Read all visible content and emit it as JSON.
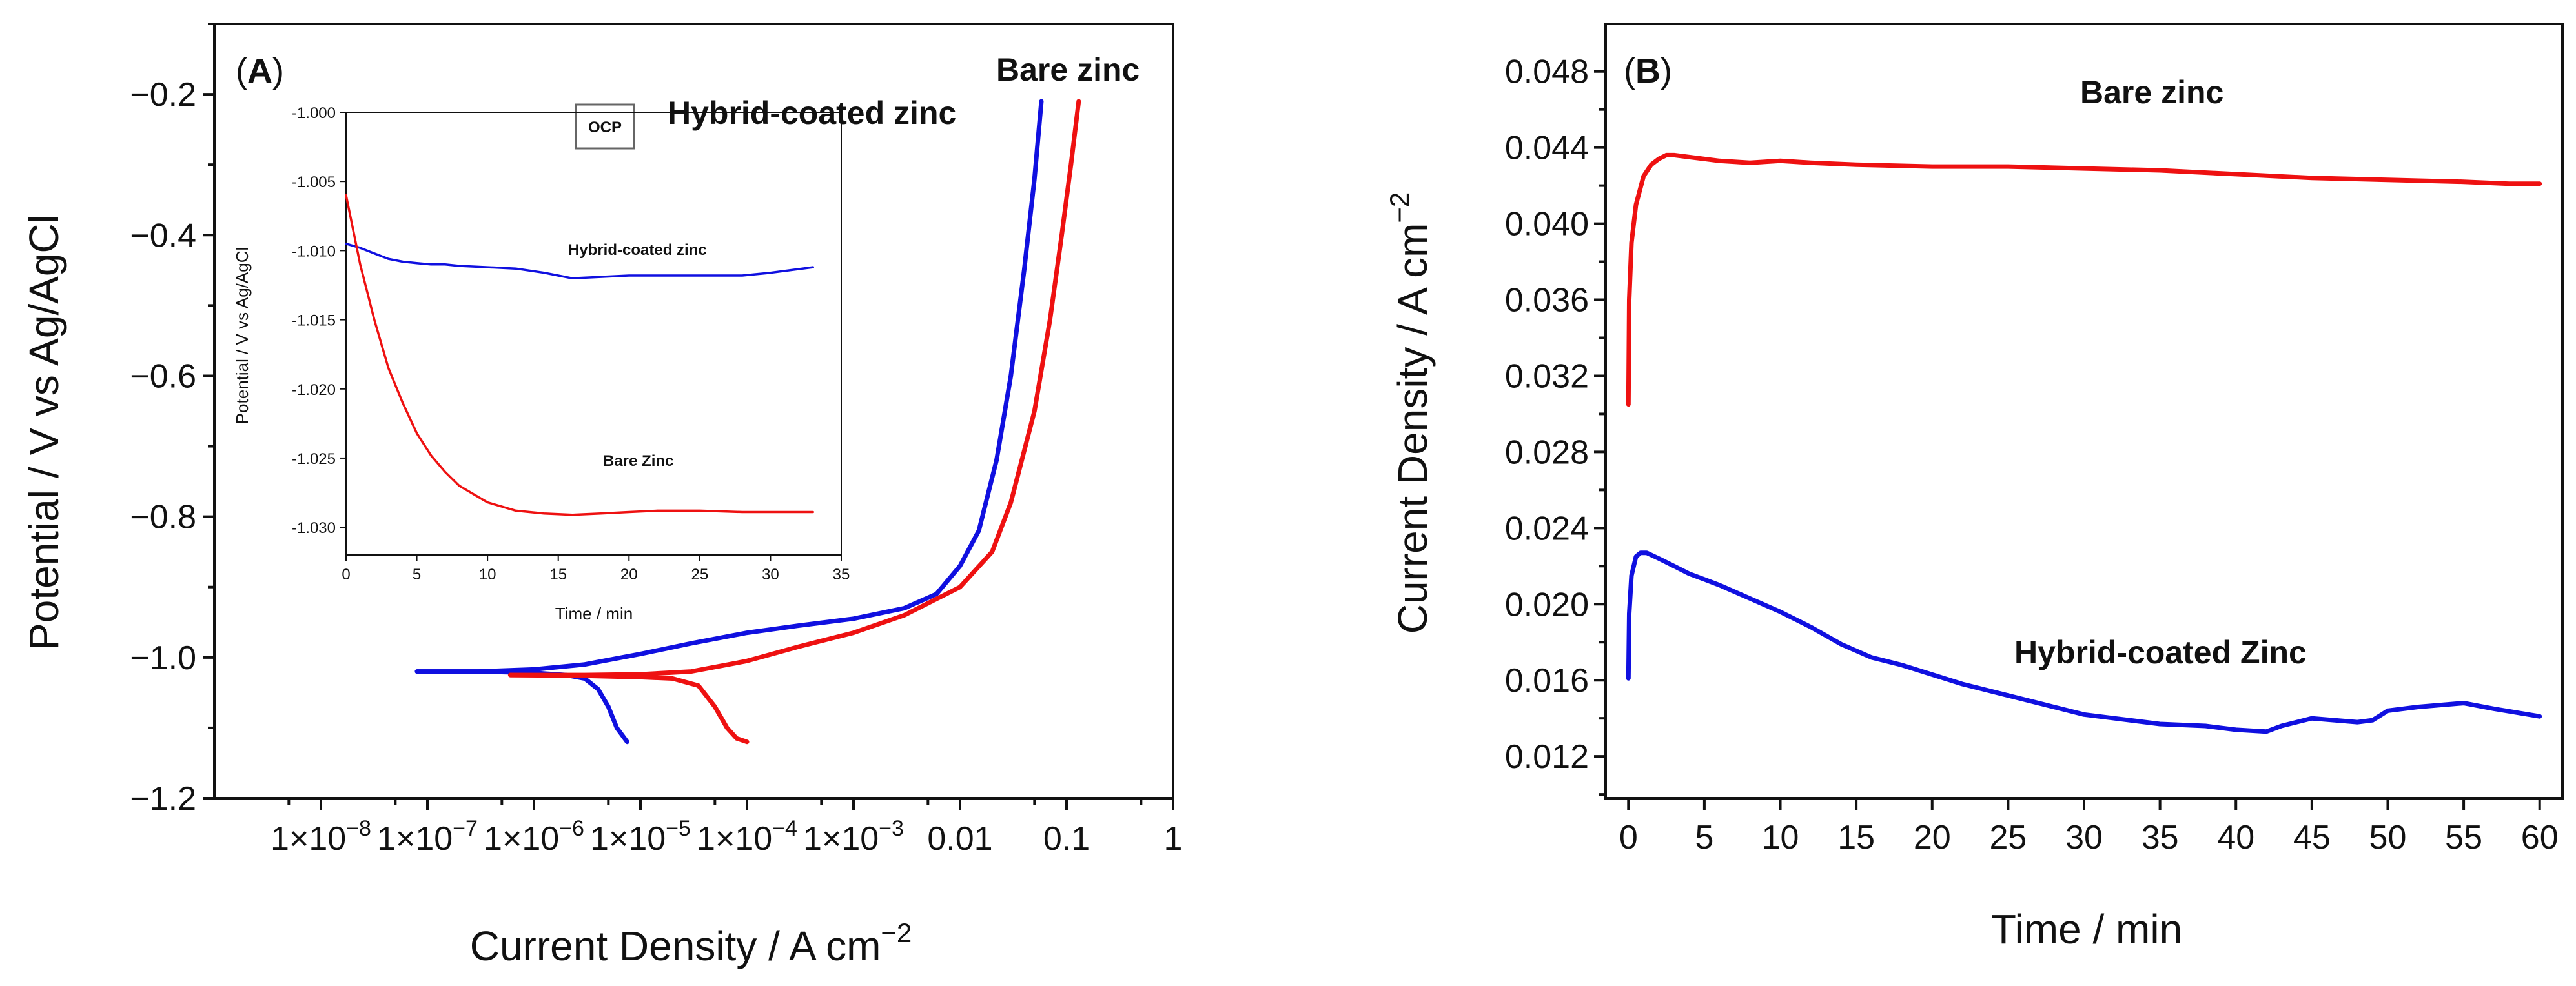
{
  "chart_data": [
    {
      "id": "A",
      "type": "line",
      "panel_label": "A",
      "xlabel": "Current Density / A cm",
      "xlabel_sup": "−2",
      "ylabel": "Potential / V vs Ag/AgCl",
      "xscale": "log",
      "xlim": [
        1e-09,
        1
      ],
      "ylim": [
        -1.2,
        -0.1
      ],
      "x_ticks": [
        {
          "value": 1e-08,
          "label": "1×10"
        },
        {
          "value": 1e-07,
          "label": "1×10"
        },
        {
          "value": 1e-06,
          "label": "1×10"
        },
        {
          "value": 1e-05,
          "label": "1×10"
        },
        {
          "value": 0.0001,
          "label": "1×10"
        },
        {
          "value": 0.001,
          "label": "1×10"
        },
        {
          "value": 0.01,
          "label": "0.01"
        },
        {
          "value": 0.1,
          "label": "0.1"
        },
        {
          "value": 1,
          "label": "1"
        }
      ],
      "x_tick_exponents": [
        "−8",
        "−7",
        "−6",
        "−5",
        "−4",
        "−3",
        "",
        "",
        ""
      ],
      "y_ticks": [
        -1.2,
        -1.0,
        -0.8,
        -0.6,
        -0.4,
        -0.2
      ],
      "y_tick_labels": [
        "−1.2",
        "−1.0",
        "−0.8",
        "−0.6",
        "−0.4",
        "−0.2"
      ],
      "series": [
        {
          "name": "Hybrid-coated zinc",
          "color": "#1010e0",
          "anodic": [
            [
              8e-08,
              -1.02
            ],
            [
              3e-07,
              -1.02
            ],
            [
              1e-06,
              -1.017
            ],
            [
              3e-06,
              -1.01
            ],
            [
              1e-05,
              -0.995
            ],
            [
              3e-05,
              -0.98
            ],
            [
              0.0001,
              -0.965
            ],
            [
              0.0003,
              -0.955
            ],
            [
              0.001,
              -0.945
            ],
            [
              0.003,
              -0.93
            ],
            [
              0.006,
              -0.91
            ],
            [
              0.01,
              -0.87
            ],
            [
              0.015,
              -0.82
            ],
            [
              0.022,
              -0.72
            ],
            [
              0.03,
              -0.6
            ],
            [
              0.04,
              -0.45
            ],
            [
              0.05,
              -0.32
            ],
            [
              0.058,
              -0.21
            ]
          ],
          "cathodic": [
            [
              8e-08,
              -1.02
            ],
            [
              3e-07,
              -1.02
            ],
            [
              1e-06,
              -1.022
            ],
            [
              2e-06,
              -1.025
            ],
            [
              3e-06,
              -1.03
            ],
            [
              4e-06,
              -1.045
            ],
            [
              5e-06,
              -1.07
            ],
            [
              6e-06,
              -1.1
            ],
            [
              7.5e-06,
              -1.12
            ]
          ]
        },
        {
          "name": "Bare zinc",
          "color": "#ee1111",
          "anodic": [
            [
              6e-07,
              -1.025
            ],
            [
              3e-06,
              -1.025
            ],
            [
              1e-05,
              -1.024
            ],
            [
              3e-05,
              -1.02
            ],
            [
              0.0001,
              -1.005
            ],
            [
              0.0003,
              -0.985
            ],
            [
              0.001,
              -0.965
            ],
            [
              0.003,
              -0.94
            ],
            [
              0.01,
              -0.9
            ],
            [
              0.02,
              -0.85
            ],
            [
              0.03,
              -0.78
            ],
            [
              0.05,
              -0.65
            ],
            [
              0.07,
              -0.52
            ],
            [
              0.09,
              -0.4
            ],
            [
              0.11,
              -0.3
            ],
            [
              0.13,
              -0.21
            ]
          ],
          "cathodic": [
            [
              6e-07,
              -1.025
            ],
            [
              3e-06,
              -1.026
            ],
            [
              1e-05,
              -1.028
            ],
            [
              2e-05,
              -1.03
            ],
            [
              3.5e-05,
              -1.04
            ],
            [
              5e-05,
              -1.07
            ],
            [
              6.5e-05,
              -1.1
            ],
            [
              8e-05,
              -1.115
            ],
            [
              0.0001,
              -1.12
            ]
          ]
        }
      ],
      "annotations": [
        {
          "text": "Hybrid-coated zinc",
          "color": "#1010e0"
        },
        {
          "text": "Bare zinc",
          "color": "#ee1111"
        },
        {
          "text": "OCP",
          "color": "#000000"
        }
      ],
      "inset": {
        "type": "line",
        "xlabel": "Time / min",
        "ylabel": "Potential / V vs Ag/AgCl",
        "xlim": [
          0,
          35
        ],
        "ylim": [
          -1.032,
          -1.0
        ],
        "x_ticks": [
          0,
          5,
          10,
          15,
          20,
          25,
          30,
          35
        ],
        "y_ticks": [
          -1.03,
          -1.025,
          -1.02,
          -1.015,
          -1.01,
          -1.005,
          -1.0
        ],
        "y_tick_labels": [
          "-1.030",
          "-1.025",
          "-1.020",
          "-1.015",
          "-1.010",
          "-1.005",
          "-1.000"
        ],
        "series": [
          {
            "name": "Hybrid-coated zinc",
            "color": "#1010e0",
            "x": [
              0,
              1,
              2,
              3,
              4,
              5,
              6,
              7,
              8,
              10,
              12,
              14,
              15,
              16,
              18,
              20,
              22,
              25,
              28,
              30,
              33
            ],
            "y": [
              -1.0095,
              -1.0098,
              -1.0102,
              -1.0106,
              -1.0108,
              -1.0109,
              -1.011,
              -1.011,
              -1.0111,
              -1.0112,
              -1.0113,
              -1.0116,
              -1.0118,
              -1.012,
              -1.0119,
              -1.0118,
              -1.0118,
              -1.0118,
              -1.0118,
              -1.0116,
              -1.0112
            ]
          },
          {
            "name": "Bare Zinc",
            "color": "#ee1111",
            "x": [
              0,
              0.3,
              1,
              2,
              3,
              4,
              5,
              6,
              7,
              8,
              10,
              12,
              14,
              16,
              18,
              20,
              22,
              25,
              28,
              30,
              33
            ],
            "y": [
              -1.006,
              -1.0075,
              -1.011,
              -1.015,
              -1.0185,
              -1.021,
              -1.0232,
              -1.0248,
              -1.026,
              -1.027,
              -1.0282,
              -1.0288,
              -1.029,
              -1.0291,
              -1.029,
              -1.0289,
              -1.0288,
              -1.0288,
              -1.0289,
              -1.0289,
              -1.0289
            ]
          }
        ],
        "labels": [
          {
            "text": "Hybrid-coated zinc",
            "color": "#1010e0"
          },
          {
            "text": "Bare Zinc",
            "color": "#ee1111"
          }
        ]
      }
    },
    {
      "id": "B",
      "type": "line",
      "panel_label": "B",
      "xlabel": "Time / min",
      "ylabel": "Current Density / A cm",
      "ylabel_sup": "−2",
      "xlim": [
        -1.5,
        61.5
      ],
      "ylim": [
        0.0098,
        0.0505
      ],
      "x_ticks": [
        0,
        5,
        10,
        15,
        20,
        25,
        30,
        35,
        40,
        45,
        50,
        55,
        60
      ],
      "y_ticks": [
        0.012,
        0.016,
        0.02,
        0.024,
        0.028,
        0.032,
        0.036,
        0.04,
        0.044,
        0.048
      ],
      "y_tick_labels": [
        "0.012",
        "0.016",
        "0.020",
        "0.024",
        "0.028",
        "0.032",
        "0.036",
        "0.040",
        "0.044",
        "0.048"
      ],
      "series": [
        {
          "name": "Bare zinc",
          "color": "#ee1111",
          "x": [
            0,
            0.05,
            0.2,
            0.5,
            1,
            1.5,
            2,
            2.5,
            3,
            4,
            5,
            6,
            8,
            10,
            12,
            15,
            20,
            25,
            30,
            35,
            40,
            45,
            50,
            55,
            58,
            60
          ],
          "y": [
            0.0305,
            0.036,
            0.039,
            0.041,
            0.0425,
            0.0431,
            0.0434,
            0.0436,
            0.0436,
            0.0435,
            0.0434,
            0.0433,
            0.0432,
            0.0433,
            0.0432,
            0.0431,
            0.043,
            0.043,
            0.0429,
            0.0428,
            0.0426,
            0.0424,
            0.0423,
            0.0422,
            0.0421,
            0.0421
          ]
        },
        {
          "name": "Hybrid-coated Zinc",
          "color": "#1010e0",
          "x": [
            0,
            0.05,
            0.2,
            0.5,
            0.8,
            1.2,
            2,
            3,
            4,
            5,
            6,
            8,
            10,
            12,
            14,
            16,
            18,
            20,
            22,
            25,
            28,
            30,
            32,
            35,
            38,
            40,
            42,
            43,
            45,
            48,
            49,
            50,
            52,
            55,
            57,
            60
          ],
          "y": [
            0.0161,
            0.0195,
            0.0215,
            0.0225,
            0.0227,
            0.0227,
            0.0224,
            0.022,
            0.0216,
            0.0213,
            0.021,
            0.0203,
            0.0196,
            0.0188,
            0.0179,
            0.0172,
            0.0168,
            0.0163,
            0.0158,
            0.0152,
            0.0146,
            0.0142,
            0.014,
            0.0137,
            0.0136,
            0.0134,
            0.0133,
            0.0136,
            0.014,
            0.0138,
            0.0139,
            0.0144,
            0.0146,
            0.0148,
            0.0145,
            0.0141
          ]
        }
      ],
      "annotations": [
        {
          "text": "Bare zinc",
          "color": "#ee1111"
        },
        {
          "text": "Hybrid-coated Zinc",
          "color": "#1010e0"
        }
      ]
    }
  ]
}
